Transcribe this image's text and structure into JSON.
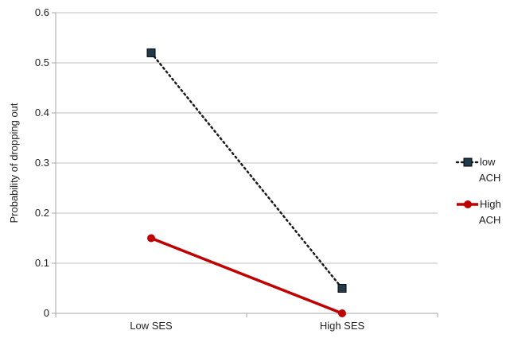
{
  "chart_data": {
    "type": "line",
    "categories": [
      "Low SES",
      "High SES"
    ],
    "ylabel": "Probability of dropping out",
    "xlabel": "",
    "ylim": [
      0,
      0.6
    ],
    "yticks": [
      "0",
      "0.1",
      "0.2",
      "0.3",
      "0.4",
      "0.5",
      "0.6"
    ],
    "grid": true,
    "legend_position": "right",
    "series": [
      {
        "name_lines": [
          "low",
          "ACH"
        ],
        "values": [
          0.52,
          0.05
        ],
        "color": "#1b1b1b",
        "marker_fill": "#1f3a4a",
        "marker": "square",
        "line_style": "dotted"
      },
      {
        "name_lines": [
          "High",
          "ACH"
        ],
        "values": [
          0.15,
          0.0
        ],
        "color": "#c00000",
        "marker_fill": "#c00000",
        "marker": "circle",
        "line_style": "solid"
      }
    ]
  }
}
